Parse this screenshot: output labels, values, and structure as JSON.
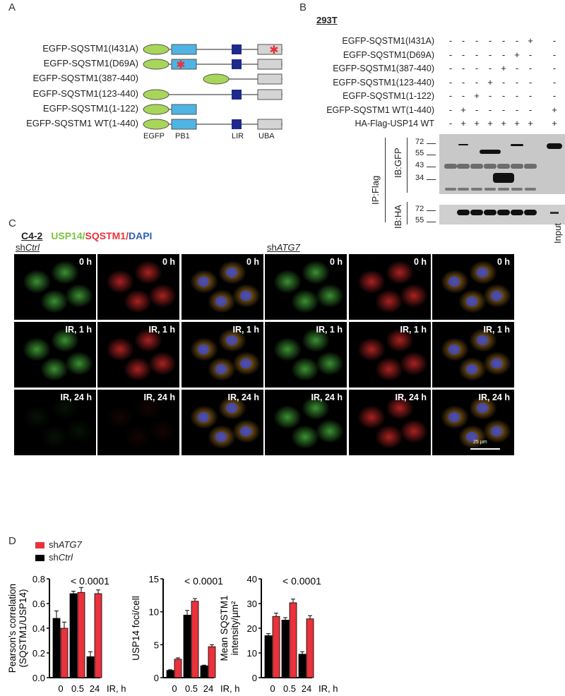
{
  "panels": {
    "a": "A",
    "b": "B",
    "c": "C",
    "d": "D"
  },
  "panel_a": {
    "constructs": [
      {
        "label": "EGFP-SQSTM1(I431A)",
        "domains": [
          "EGFP",
          "PB1",
          "LIR",
          "UBA"
        ],
        "mutation": "UBA"
      },
      {
        "label": "EGFP-SQSTM1(D69A)",
        "domains": [
          "EGFP",
          "PB1",
          "LIR",
          "UBA"
        ],
        "mutation": "PB1"
      },
      {
        "label": "EGFP-SQSTM1(387-440)",
        "domains": [
          "EGFP387",
          "UBA"
        ],
        "mutation": null
      },
      {
        "label": "EGFP-SQSTM1(123-440)",
        "domains": [
          "EGFP",
          "LIR",
          "UBA"
        ],
        "mutation": null
      },
      {
        "label": "EGFP-SQSTM1(1-122)",
        "domains": [
          "EGFP",
          "PB1"
        ],
        "mutation": null
      },
      {
        "label": "EGFP-SQSTM1 WT(1-440)",
        "domains": [
          "EGFP",
          "PB1",
          "LIR",
          "UBA"
        ],
        "mutation": null
      }
    ],
    "domain_labels": [
      "EGFP",
      "PB1",
      "LIR",
      "UBA"
    ],
    "colors": {
      "egfp": "#a8d65a",
      "pb1": "#4fb4e4",
      "lir": "#1d2a8c",
      "uba": "#d4d4d4",
      "mutation": "#e8323c"
    }
  },
  "panel_b": {
    "cell_line": "293T",
    "rows": [
      {
        "label": "EGFP-SQSTM1(I431A)",
        "signs": [
          "-",
          "-",
          "-",
          "-",
          "-",
          "-",
          "+",
          "-"
        ]
      },
      {
        "label": "EGFP-SQSTM1(D69A)",
        "signs": [
          "-",
          "-",
          "-",
          "-",
          "-",
          "+",
          "-",
          "-"
        ]
      },
      {
        "label": "EGFP-SQSTM1(387-440)",
        "signs": [
          "-",
          "-",
          "-",
          "-",
          "+",
          "-",
          "-",
          "-"
        ]
      },
      {
        "label": "EGFP-SQSTM1(123-440)",
        "signs": [
          "-",
          "-",
          "-",
          "+",
          "-",
          "-",
          "-",
          "-"
        ]
      },
      {
        "label": "EGFP-SQSTM1(1-122)",
        "signs": [
          "-",
          "-",
          "+",
          "-",
          "-",
          "-",
          "-",
          "-"
        ]
      },
      {
        "label": "EGFP-SQSTM1 WT(1-440)",
        "signs": [
          "-",
          "+",
          "-",
          "-",
          "-",
          "-",
          "-",
          "+"
        ]
      },
      {
        "label": "HA-Flag-USP14 WT",
        "signs": [
          "-",
          "+",
          "+",
          "+",
          "+",
          "+",
          "+",
          "+"
        ]
      }
    ],
    "ip_label": "IP:Flag",
    "ib_gfp": "IB:GFP",
    "ib_ha": "IB:HA",
    "gfp_markers": [
      "72",
      "55",
      "43",
      "34"
    ],
    "ha_markers": [
      "72",
      "55"
    ],
    "input_label": "Input"
  },
  "panel_c": {
    "cell_line": "C4-2",
    "stain": {
      "usp14": "USP14",
      "sep1": "/",
      "sqstm1": "SQSTM1",
      "sep2": "/",
      "dapi": "DAPI"
    },
    "stain_colors": {
      "usp14": "#7dc242",
      "sqstm1": "#e8323c",
      "dapi": "#2e5fb4"
    },
    "groups": [
      {
        "prefix": "sh",
        "gene": "Ctrl"
      },
      {
        "prefix": "sh",
        "gene": "ATG7"
      }
    ],
    "rows": [
      "0 h",
      "IR, 1 h",
      "IR, 24 h"
    ],
    "scale_bar": "25 µm"
  },
  "panel_d": {
    "legend": [
      {
        "prefix": "sh",
        "gene": "ATG7",
        "color": "#e8323c"
      },
      {
        "prefix": "sh",
        "gene": "Ctrl",
        "color": "#000000"
      }
    ],
    "xlabel": "IR, h"
  },
  "chart_data": [
    {
      "type": "bar",
      "title": "",
      "ylabel": "Pearson's correlation (SQSTM1/USP14)",
      "ylabel_lines": [
        "Pearson's correlation",
        "(SQSTM1/USP14)"
      ],
      "xlabel": "IR, h",
      "annotation": "< 0.0001",
      "categories": [
        "0",
        "0.5",
        "24"
      ],
      "ylim": [
        0,
        0.8
      ],
      "yticks": [
        "0.0",
        "0.2",
        "0.4",
        "0.6",
        "0.8"
      ],
      "series": [
        {
          "name": "shCtrl",
          "color": "#000000",
          "values": [
            0.48,
            0.68,
            0.17
          ],
          "errors": [
            0.06,
            0.02,
            0.04
          ]
        },
        {
          "name": "shATG7",
          "color": "#e8323c",
          "values": [
            0.4,
            0.69,
            0.68
          ],
          "errors": [
            0.05,
            0.04,
            0.03
          ]
        }
      ]
    },
    {
      "type": "bar",
      "title": "",
      "ylabel": "USP14 foci/cell",
      "ylabel_lines": [
        "USP14 foci/cell"
      ],
      "xlabel": "IR, h",
      "annotation": "< 0.0001",
      "categories": [
        "0",
        "0.5",
        "24"
      ],
      "ylim": [
        0,
        15
      ],
      "yticks": [
        "0",
        "5",
        "10",
        "15"
      ],
      "series": [
        {
          "name": "shCtrl",
          "color": "#000000",
          "values": [
            1.1,
            9.5,
            1.8
          ],
          "errors": [
            0.1,
            0.7,
            0.1
          ]
        },
        {
          "name": "shATG7",
          "color": "#e8323c",
          "values": [
            2.8,
            11.6,
            4.7
          ],
          "errors": [
            0.2,
            0.4,
            0.3
          ]
        }
      ]
    },
    {
      "type": "bar",
      "title": "",
      "ylabel": "Mean SQSTM1 intensity/µm²",
      "ylabel_lines": [
        "Mean SQSTM1",
        "intensity/µm²"
      ],
      "xlabel": "IR, h",
      "annotation": "< 0.0001",
      "categories": [
        "0",
        "0.5",
        "24"
      ],
      "ylim": [
        0,
        40
      ],
      "yticks": [
        "0",
        "10",
        "20",
        "30",
        "40"
      ],
      "series": [
        {
          "name": "shCtrl",
          "color": "#000000",
          "values": [
            17,
            23.3,
            9.5
          ],
          "errors": [
            0.8,
            1.0,
            1.0
          ]
        },
        {
          "name": "shATG7",
          "color": "#e8323c",
          "values": [
            24.8,
            30.3,
            23.8
          ],
          "errors": [
            1.3,
            1.5,
            1.3
          ]
        }
      ]
    }
  ]
}
